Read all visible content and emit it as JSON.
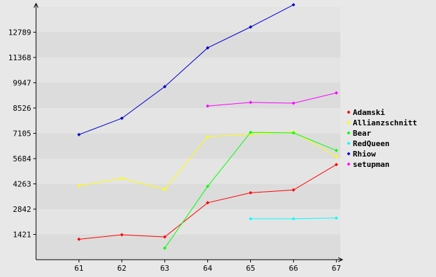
{
  "chart_data": {
    "type": "line",
    "title": "",
    "xlabel": "",
    "ylabel": "",
    "x": [
      61,
      62,
      63,
      64,
      65,
      66,
      67
    ],
    "x_tick_labels": [
      "61",
      "62",
      "63",
      "64",
      "65",
      "66",
      "67"
    ],
    "y_ticks": [
      1421,
      2842,
      4263,
      5684,
      7105,
      8526,
      9947,
      11368,
      12789
    ],
    "y_tick_labels": [
      "1421",
      "2842",
      "4263",
      "5684",
      "7105",
      "8526",
      "9947",
      "11368",
      "12789"
    ],
    "ylim": [
      0,
      14210
    ],
    "xlim": [
      60,
      67.9
    ],
    "grid": "alternating horizontal bands",
    "legend_position": "right",
    "series": [
      {
        "name": "Adamski",
        "color": "#ff0000",
        "points": [
          [
            61,
            1150
          ],
          [
            62,
            1400
          ],
          [
            63,
            1280
          ],
          [
            64,
            3200
          ],
          [
            65,
            3760
          ],
          [
            66,
            3920
          ],
          [
            67,
            5350
          ]
        ]
      },
      {
        "name": "Allianzschnitt",
        "color": "#ffff00",
        "points": [
          [
            61,
            4150
          ],
          [
            62,
            4580
          ],
          [
            63,
            3950
          ],
          [
            64,
            6920
          ],
          [
            65,
            7060
          ],
          [
            66,
            7180
          ],
          [
            67,
            5800
          ]
        ]
      },
      {
        "name": "Bear",
        "color": "#00ff00",
        "points": [
          [
            63,
            650
          ],
          [
            64,
            4120
          ],
          [
            65,
            7160
          ],
          [
            66,
            7130
          ],
          [
            67,
            6140
          ]
        ]
      },
      {
        "name": "RedQueen",
        "color": "#00ffff",
        "points": [
          [
            65,
            2300
          ],
          [
            66,
            2300
          ],
          [
            67,
            2340
          ]
        ]
      },
      {
        "name": "Rhiow",
        "color": "#0000cc",
        "points": [
          [
            61,
            7030
          ],
          [
            62,
            7950
          ],
          [
            63,
            9730
          ],
          [
            64,
            11910
          ],
          [
            65,
            13080
          ],
          [
            66,
            14330
          ]
        ]
      },
      {
        "name": "setupman",
        "color": "#ff00ff",
        "points": [
          [
            64,
            8640
          ],
          [
            65,
            8840
          ],
          [
            66,
            8800
          ],
          [
            67,
            9380
          ]
        ]
      }
    ]
  }
}
